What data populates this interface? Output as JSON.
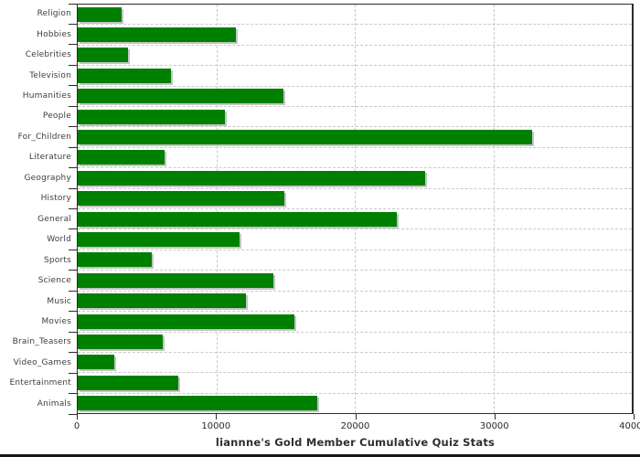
{
  "chart_data": {
    "type": "bar",
    "orientation": "horizontal",
    "title": "liannne's Gold Member Cumulative Quiz Stats",
    "xlabel": "",
    "ylabel": "",
    "categories": [
      "Religion",
      "Hobbies",
      "Celebrities",
      "Television",
      "Humanities",
      "People",
      "For_Children",
      "Literature",
      "Geography",
      "History",
      "General",
      "World",
      "Sports",
      "Science",
      "Music",
      "Movies",
      "Brain_Teasers",
      "Video_Games",
      "Entertainment",
      "Animals"
    ],
    "values": [
      3150,
      11450,
      3600,
      6700,
      14850,
      10650,
      32800,
      6250,
      25050,
      14950,
      23050,
      11700,
      5350,
      14150,
      12150,
      15650,
      6150,
      2650,
      7250,
      17300
    ],
    "xlim": [
      0,
      40000
    ],
    "x_ticks": [
      "0",
      "10000",
      "20000",
      "30000",
      "40000"
    ],
    "grid": "dashed-both-directions",
    "legend": "none",
    "bar_color": "#008000",
    "bar_shadow_color": "#c4c4c4",
    "grid_color": "#c9c9c9",
    "axis_color": "#2b2b2b",
    "background_color": "#ffffff"
  }
}
